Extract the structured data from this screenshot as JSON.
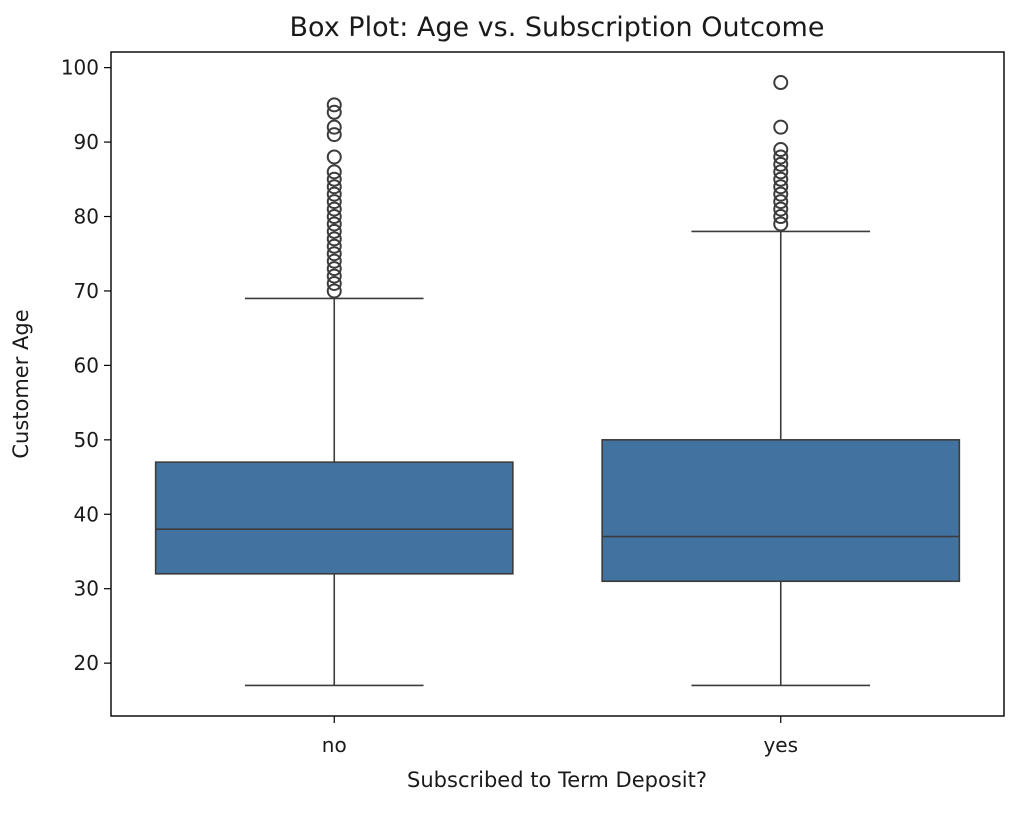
{
  "chart_data": {
    "type": "box",
    "title": "Box Plot: Age vs. Subscription Outcome",
    "xlabel": "Subscribed to Term Deposit?",
    "ylabel": "Customer Age",
    "ylim": [
      12.9,
      102.1
    ],
    "yticks": [
      20,
      30,
      40,
      50,
      60,
      70,
      80,
      90,
      100
    ],
    "grid": false,
    "box_color": "#4272a0",
    "line_color": "#3c3c3c",
    "categories": [
      "no",
      "yes"
    ],
    "boxes": [
      {
        "category": "no",
        "whisker_low": 17,
        "q1": 32,
        "median": 38,
        "q3": 47,
        "whisker_high": 69,
        "outliers": [
          70,
          71,
          72,
          73,
          74,
          75,
          76,
          77,
          78,
          79,
          80,
          81,
          82,
          83,
          84,
          85,
          86,
          88,
          91,
          92,
          94,
          95
        ]
      },
      {
        "category": "yes",
        "whisker_low": 17,
        "q1": 31,
        "median": 37,
        "q3": 50,
        "whisker_high": 78,
        "outliers": [
          79,
          80,
          81,
          82,
          83,
          84,
          85,
          86,
          87,
          88,
          89,
          92,
          98
        ]
      }
    ]
  }
}
